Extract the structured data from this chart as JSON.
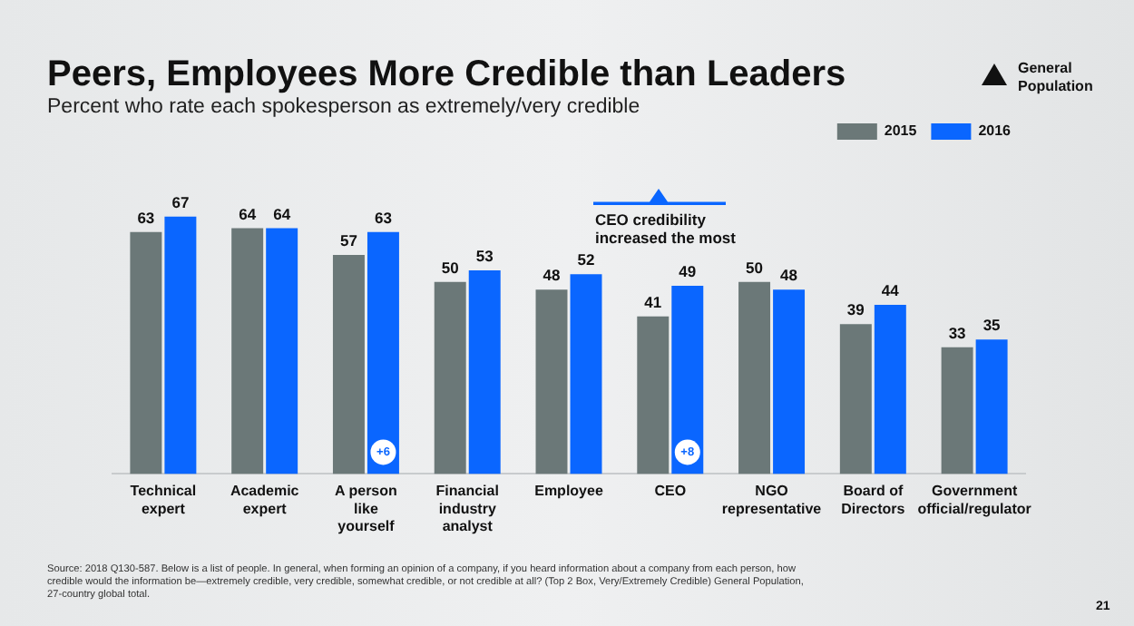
{
  "chart_data": {
    "type": "bar",
    "title": "Peers, Employees More Credible than Leaders",
    "subtitle": "Percent who rate each spokesperson as extremely/very credible",
    "categories": [
      "Technical expert",
      "Academic expert",
      "A person like yourself",
      "Financial industry analyst",
      "Employee",
      "CEO",
      "NGO representative",
      "Board of Directors",
      "Government official/regulator"
    ],
    "series": [
      {
        "name": "2015",
        "color": "#6b7878",
        "values": [
          63,
          64,
          57,
          50,
          48,
          41,
          50,
          39,
          33
        ]
      },
      {
        "name": "2016",
        "color": "#0a66ff",
        "values": [
          67,
          64,
          63,
          53,
          52,
          49,
          48,
          44,
          35
        ]
      }
    ],
    "tick_labels": "x",
    "grid": false,
    "legend": "top right",
    "data_labels": true,
    "annotations": [
      "CEO credibility increased the most",
      "General Population",
      {
        "text": "+6",
        "x": "A person like yourself"
      },
      {
        "text": "+8",
        "x": "CEO"
      },
      "Source: 2018 Q130-587. Below is a list of people. In general, when forming an opinion of a company, if you heard information about a company from each person, how credible would the information be—extremely credible, very credible, somewhat credible, or not credible at all? (Top 2 Box, Very/Extremely Credible) General Population, 27-country global total.",
      "21"
    ]
  }
}
